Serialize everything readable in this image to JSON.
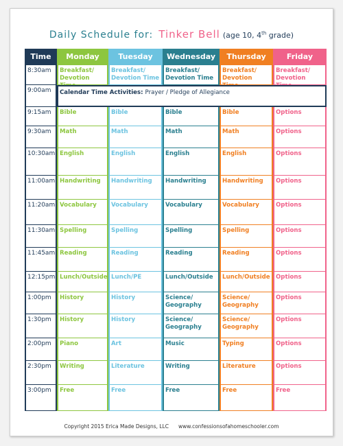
{
  "header": {
    "title": "Daily Schedule for:",
    "name": "Tinker Bell",
    "note": [
      "(age 10, 4",
      "th",
      " grade)"
    ]
  },
  "table": {
    "columns": [
      "Time",
      "Monday",
      "Tuesday",
      "Wednesday",
      "Thursday",
      "Friday"
    ],
    "rows": [
      {
        "time": "8:30am",
        "cells": [
          "Breakfast/ Devotion Time",
          "Breakfast/ Devotion Time",
          "Breakfast/ Devotion Time",
          "Breakfast/ Devotion Time",
          "Breakfast/ Devotion Time"
        ]
      },
      {
        "time": "9:00am",
        "banner": {
          "label": "Calendar Time Activities:",
          "text": "Prayer / Pledge of Allegiance"
        }
      },
      {
        "time": "9:15am",
        "cells": [
          "Bible",
          "Bible",
          "Bible",
          "Bible",
          "Options"
        ]
      },
      {
        "time": "9:30am",
        "cells": [
          "Math",
          "Math",
          "Math",
          "Math",
          "Options"
        ]
      },
      {
        "time": "10:30am",
        "cells": [
          "English",
          "English",
          "English",
          "English",
          "Options"
        ]
      },
      {
        "time": "11:00am",
        "cells": [
          "Handwriting",
          "Handwriting",
          "Handwriting",
          "Handwriting",
          "Options"
        ]
      },
      {
        "time": "11:20am",
        "cells": [
          "Vocabulary",
          "Vocabulary",
          "Vocabulary",
          "Vocabulary",
          "Options"
        ]
      },
      {
        "time": "11:30am",
        "cells": [
          "Spelling",
          "Spelling",
          "Spelling",
          "Spelling",
          "Options"
        ]
      },
      {
        "time": "11:45am",
        "cells": [
          "Reading",
          "Reading",
          "Reading",
          "Reading",
          "Options"
        ]
      },
      {
        "time": "12:15pm",
        "cells": [
          "Lunch/Outside",
          "Lunch/PE",
          "Lunch/Outside",
          "Lunch/Outside",
          "Options"
        ]
      },
      {
        "time": "1:00pm",
        "cells": [
          "History",
          "History",
          "Science/ Geography",
          "Science/ Geography",
          "Options"
        ]
      },
      {
        "time": "1:30pm",
        "cells": [
          "History",
          "History",
          "Science/ Geography",
          "Science/ Geography",
          "Options"
        ]
      },
      {
        "time": "2:00pm",
        "cells": [
          "Piano",
          "Art",
          "Music",
          "Typing",
          "Options"
        ]
      },
      {
        "time": "2:30pm",
        "cells": [
          "Writing",
          "Literature",
          "Writing",
          "Literature",
          "Options"
        ]
      },
      {
        "time": "3:00pm",
        "cells": [
          "Free",
          "Free",
          "Free",
          "Free",
          "Free"
        ]
      }
    ]
  },
  "footer": {
    "copyright": "Copyright 2015 Erica Made Designs, LLC",
    "url": "www.confessionsofahomeschooler.com"
  }
}
